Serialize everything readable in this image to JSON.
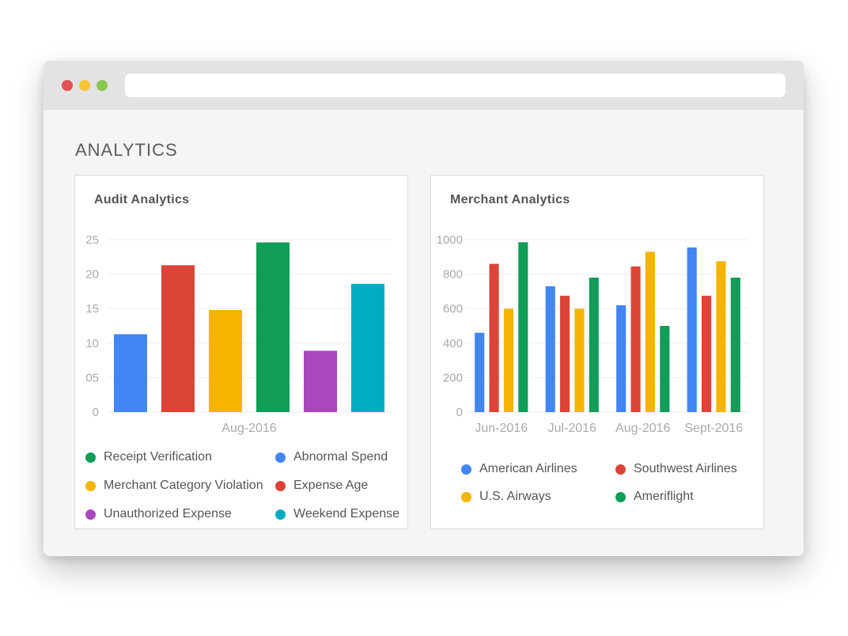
{
  "browser": {
    "url": ""
  },
  "page": {
    "title": "ANALYTICS"
  },
  "cards": {
    "audit": {
      "title": "Audit Analytics"
    },
    "merchant": {
      "title": "Merchant Analytics"
    }
  },
  "chart_data": [
    {
      "type": "bar",
      "title": "Audit Analytics",
      "categories": [
        "Aug-2016"
      ],
      "y_tick_labels": [
        "0",
        "05",
        "10",
        "15",
        "20",
        "25"
      ],
      "ylim": [
        0,
        25
      ],
      "grid": true,
      "series": [
        {
          "name": "Abnormal Spend",
          "values": [
            11.3
          ],
          "color": "#4285f4"
        },
        {
          "name": "Expense Age",
          "values": [
            21.3
          ],
          "color": "#db4437"
        },
        {
          "name": "Merchant Category Violation",
          "values": [
            14.8
          ],
          "color": "#f4b400"
        },
        {
          "name": "Receipt Verification",
          "values": [
            24.6
          ],
          "color": "#0f9d58"
        },
        {
          "name": "Unauthorized Expense",
          "values": [
            8.9
          ],
          "color": "#ab47bc"
        },
        {
          "name": "Weekend Expense",
          "values": [
            18.6
          ],
          "color": "#00acc1"
        }
      ],
      "legend": [
        {
          "label": "Receipt Verification",
          "color": "#0f9d58"
        },
        {
          "label": "Abnormal Spend",
          "color": "#4285f4"
        },
        {
          "label": "Merchant Category Violation",
          "color": "#f4b400"
        },
        {
          "label": "Expense Age",
          "color": "#db4437"
        },
        {
          "label": "Unauthorized Expense",
          "color": "#ab47bc"
        },
        {
          "label": "Weekend Expense",
          "color": "#00acc1"
        }
      ],
      "legend_placement": "bottom"
    },
    {
      "type": "bar",
      "title": "Merchant Analytics",
      "categories": [
        "Jun-2016",
        "Jul-2016",
        "Aug-2016",
        "Sept-2016"
      ],
      "y_tick_labels": [
        "0",
        "200",
        "400",
        "600",
        "800",
        "1000"
      ],
      "ylim": [
        0,
        1000
      ],
      "grid": true,
      "series": [
        {
          "name": "American Airlines",
          "values": [
            460,
            730,
            620,
            955
          ],
          "color": "#4285f4"
        },
        {
          "name": "Southwest Airlines",
          "values": [
            860,
            675,
            845,
            675
          ],
          "color": "#db4437"
        },
        {
          "name": "U.S. Airways",
          "values": [
            600,
            600,
            930,
            875
          ],
          "color": "#f4b400"
        },
        {
          "name": "Ameriflight",
          "values": [
            985,
            780,
            500,
            780
          ],
          "color": "#0f9d58"
        }
      ],
      "legend": [
        {
          "label": "American Airlines",
          "color": "#4285f4"
        },
        {
          "label": "Southwest Airlines",
          "color": "#db4437"
        },
        {
          "label": "U.S. Airways",
          "color": "#f4b400"
        },
        {
          "label": "Ameriflight",
          "color": "#0f9d58"
        }
      ],
      "legend_placement": "bottom"
    }
  ]
}
